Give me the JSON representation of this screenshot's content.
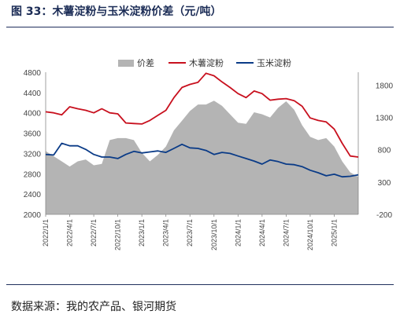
{
  "header": {
    "title": "图 33：木薯淀粉与玉米淀粉价差（元/吨）"
  },
  "footer": {
    "source": "数据来源：我的农产品、银河期货"
  },
  "chart_data": {
    "type": "line",
    "title": "",
    "xlabel": "",
    "ylabel": "",
    "x_tick_labels": [
      "2022/1/1",
      "2022/4/1",
      "2022/7/1",
      "2022/10/1",
      "2023/1/1",
      "2023/4/1",
      "2023/7/1",
      "2023/10/1",
      "2024/1/1",
      "2024/4/1",
      "2024/7/1",
      "2024/10/1",
      "2025/1/1"
    ],
    "x": [
      "2022/1/1",
      "2022/2/1",
      "2022/3/1",
      "2022/4/1",
      "2022/5/1",
      "2022/6/1",
      "2022/7/1",
      "2022/8/1",
      "2022/9/1",
      "2022/10/1",
      "2022/11/1",
      "2022/12/1",
      "2023/1/1",
      "2023/2/1",
      "2023/3/1",
      "2023/4/1",
      "2023/5/1",
      "2023/6/1",
      "2023/7/1",
      "2023/8/1",
      "2023/9/1",
      "2023/10/1",
      "2023/11/1",
      "2023/12/1",
      "2024/1/1",
      "2024/2/1",
      "2024/3/1",
      "2024/4/1",
      "2024/5/1",
      "2024/6/1",
      "2024/7/1",
      "2024/8/1",
      "2024/9/1",
      "2024/10/1",
      "2024/11/1",
      "2024/12/1",
      "2025/1/1",
      "2025/2/1",
      "2025/3/1",
      "2025/4/1"
    ],
    "left_axis": {
      "ylim": [
        2000,
        4800
      ],
      "ticks": [
        "2000",
        "2400",
        "2800",
        "3200",
        "3600",
        "4000",
        "4400",
        "4800"
      ]
    },
    "right_axis": {
      "ylim": [
        -200,
        2000
      ],
      "ticks": [
        "-200",
        "300",
        "800",
        "1300",
        "1800"
      ]
    },
    "legend_position": "top",
    "series": [
      {
        "name": "价差",
        "kind": "area",
        "axis": "right",
        "color": "#b4b4b4",
        "values": [
          780,
          700,
          620,
          540,
          620,
          650,
          560,
          580,
          950,
          980,
          980,
          950,
          750,
          620,
          720,
          850,
          1100,
          1250,
          1400,
          1500,
          1500,
          1560,
          1480,
          1350,
          1220,
          1200,
          1380,
          1350,
          1300,
          1450,
          1550,
          1420,
          1180,
          1000,
          950,
          980,
          850,
          620,
          450,
          380
        ]
      },
      {
        "name": "木薯淀粉",
        "kind": "line",
        "axis": "left",
        "color": "#c8101e",
        "values": [
          4020,
          4000,
          3960,
          4120,
          4080,
          4050,
          4000,
          4080,
          4000,
          3980,
          3800,
          3790,
          3780,
          3850,
          3950,
          4050,
          4300,
          4500,
          4560,
          4600,
          4780,
          4730,
          4610,
          4500,
          4380,
          4300,
          4430,
          4380,
          4250,
          4270,
          4280,
          4240,
          4130,
          3900,
          3850,
          3820,
          3680,
          3400,
          3150,
          3130
        ]
      },
      {
        "name": "玉米淀粉",
        "kind": "line",
        "axis": "left",
        "color": "#0a3b87",
        "values": [
          3180,
          3170,
          3400,
          3350,
          3350,
          3280,
          3180,
          3130,
          3130,
          3100,
          3180,
          3240,
          3210,
          3230,
          3250,
          3220,
          3300,
          3380,
          3310,
          3300,
          3260,
          3180,
          3220,
          3200,
          3150,
          3100,
          3050,
          2990,
          3070,
          3040,
          2990,
          2980,
          2940,
          2870,
          2820,
          2760,
          2790,
          2740,
          2750,
          2780
        ]
      }
    ]
  }
}
